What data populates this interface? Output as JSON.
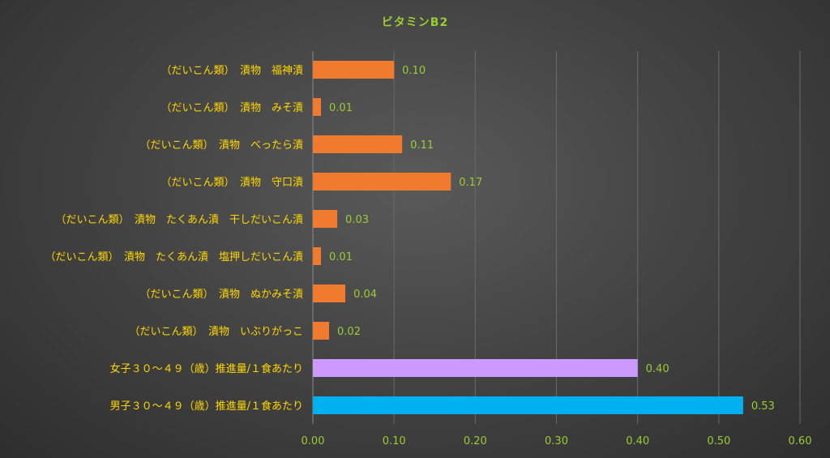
{
  "chart_data": {
    "type": "bar",
    "orientation": "horizontal",
    "title": "ビタミンB2",
    "categories": [
      "（だいこん類）　漬物　福神漬",
      "（だいこん類）　漬物　みそ漬",
      "（だいこん類）　漬物　べったら漬",
      "（だいこん類）　漬物　守口漬",
      "（だいこん類）　漬物　たくあん漬　干しだいこん漬",
      "（だいこん類）　漬物　たくあん漬　塩押しだいこん漬",
      "（だいこん類）　漬物　ぬかみそ漬",
      "（だいこん類）　漬物　いぶりがっこ",
      "女子３０～４９（歳）推進量/１食あたり",
      "男子３０～４９（歳）推進量/１食あたり"
    ],
    "values": [
      0.1,
      0.01,
      0.11,
      0.17,
      0.03,
      0.01,
      0.04,
      0.02,
      0.4,
      0.53
    ],
    "value_labels": [
      "0.10",
      "0.01",
      "0.11",
      "0.17",
      "0.03",
      "0.01",
      "0.04",
      "0.02",
      "0.40",
      "0.53"
    ],
    "bar_colors": [
      "#F07B2E",
      "#F07B2E",
      "#F07B2E",
      "#F07B2E",
      "#F07B2E",
      "#F07B2E",
      "#F07B2E",
      "#F07B2E",
      "#CC99FF",
      "#00B0F0"
    ],
    "xlim": [
      0,
      0.6
    ],
    "x_ticks": [
      0,
      0.1,
      0.2,
      0.3,
      0.4,
      0.5,
      0.6
    ],
    "x_tick_labels": [
      "0.00",
      "0.10",
      "0.20",
      "0.30",
      "0.40",
      "0.50",
      "0.60"
    ],
    "grid": true,
    "legend": "none",
    "label_color": "#FFD700",
    "value_color": "#9ACD32",
    "tick_color": "#9ACD32",
    "grid_color": "#6a6a6a"
  }
}
